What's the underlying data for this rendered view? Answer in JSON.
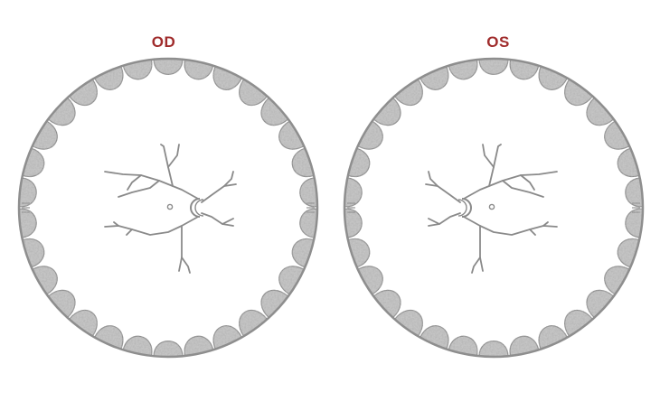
{
  "labels": {
    "right_eye": "OD",
    "left_eye": "OS"
  },
  "colors": {
    "label": "#a02c2c",
    "outline": "#8e8e8e",
    "scallop_fill": "#c4c4c4",
    "vessel": "#8a8a8a",
    "background": "#ffffff"
  },
  "icons": {
    "right_eye": "fundus-chart-icon",
    "left_eye": "fundus-chart-icon"
  }
}
